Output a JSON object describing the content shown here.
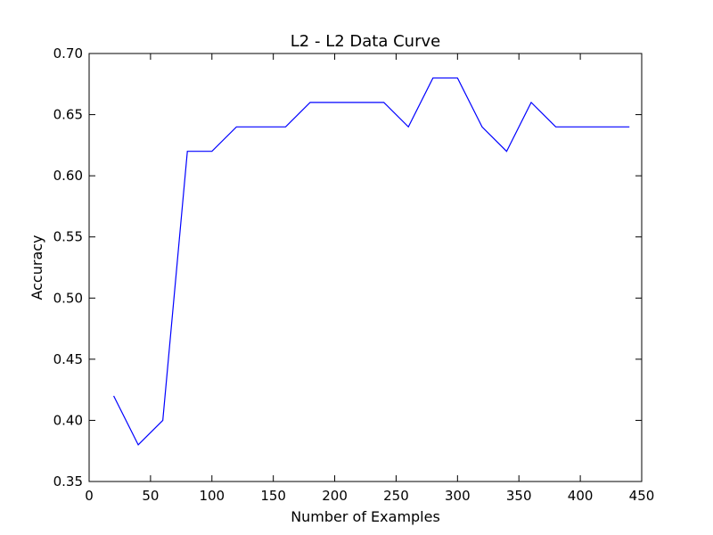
{
  "chart_data": {
    "type": "line",
    "title": "L2 - L2 Data Curve",
    "xlabel": "Number of Examples",
    "ylabel": "Accuracy",
    "xlim": [
      0,
      450
    ],
    "ylim": [
      0.35,
      0.7
    ],
    "xticks": [
      0,
      50,
      100,
      150,
      200,
      250,
      300,
      350,
      400,
      450
    ],
    "yticks": [
      0.35,
      0.4,
      0.45,
      0.5,
      0.55,
      0.6,
      0.65,
      0.7
    ],
    "xtick_labels": [
      "0",
      "50",
      "100",
      "150",
      "200",
      "250",
      "300",
      "350",
      "400",
      "450"
    ],
    "ytick_labels": [
      "0.35",
      "0.40",
      "0.45",
      "0.50",
      "0.55",
      "0.60",
      "0.65",
      "0.70"
    ],
    "grid": false,
    "series": [
      {
        "color": "#0000ff",
        "x": [
          20,
          40,
          60,
          80,
          100,
          120,
          140,
          160,
          180,
          200,
          220,
          240,
          260,
          280,
          300,
          320,
          340,
          360,
          380,
          400,
          420,
          440
        ],
        "y": [
          0.42,
          0.38,
          0.4,
          0.62,
          0.62,
          0.64,
          0.64,
          0.64,
          0.66,
          0.66,
          0.66,
          0.66,
          0.64,
          0.68,
          0.68,
          0.64,
          0.62,
          0.66,
          0.64,
          0.64,
          0.64,
          0.64
        ]
      }
    ]
  }
}
